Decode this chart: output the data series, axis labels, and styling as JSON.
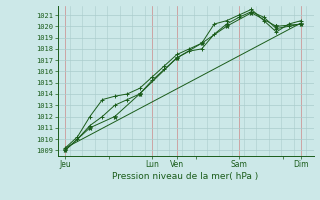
{
  "background_color": "#cce8e8",
  "grid_color_major": "#aacccc",
  "grid_color_minor": "#cce0e0",
  "line_color": "#1a5c1a",
  "marker_color": "#1a5c1a",
  "xlabel": "Pression niveau de la mer( hPa )",
  "ylim": [
    1008.5,
    1021.8
  ],
  "yticks": [
    1009,
    1010,
    1011,
    1012,
    1013,
    1014,
    1015,
    1016,
    1017,
    1018,
    1019,
    1020,
    1021
  ],
  "xtick_labels": [
    "Jeu",
    "Lun",
    "Ven",
    "Sam",
    "Dim"
  ],
  "xtick_positions": [
    0.0,
    3.5,
    4.5,
    7.0,
    9.5
  ],
  "xlim": [
    -0.3,
    10.0
  ],
  "series": [
    {
      "x": [
        0,
        0.5,
        1.0,
        1.5,
        2.0,
        2.5,
        3.0,
        3.5,
        4.0,
        4.5,
        5.0,
        5.5,
        6.0,
        6.5,
        7.0,
        7.5,
        8.0,
        8.5,
        9.0,
        9.5
      ],
      "y": [
        1009.0,
        1010.0,
        1011.2,
        1012.0,
        1013.0,
        1013.5,
        1014.0,
        1015.2,
        1016.2,
        1017.2,
        1017.8,
        1018.0,
        1019.3,
        1020.2,
        1020.8,
        1021.3,
        1020.8,
        1019.8,
        1020.0,
        1020.2
      ],
      "marker": "+"
    },
    {
      "x": [
        0,
        0.5,
        1.0,
        1.5,
        2.0,
        2.5,
        3.0,
        3.5,
        4.0,
        4.5,
        5.0,
        5.5,
        6.0,
        6.5,
        7.0,
        7.5,
        8.0,
        8.5,
        9.0,
        9.5
      ],
      "y": [
        1009.2,
        1010.2,
        1012.0,
        1013.5,
        1013.8,
        1014.0,
        1014.5,
        1015.5,
        1016.5,
        1017.5,
        1018.0,
        1018.5,
        1020.2,
        1020.5,
        1021.0,
        1021.5,
        1020.5,
        1019.5,
        1020.2,
        1020.5
      ],
      "marker": "+"
    },
    {
      "x": [
        0,
        1.0,
        2.0,
        3.0,
        4.5,
        5.5,
        6.5,
        7.5,
        8.5,
        9.5
      ],
      "y": [
        1009.0,
        1011.0,
        1012.0,
        1014.0,
        1017.2,
        1018.5,
        1020.0,
        1021.2,
        1020.0,
        1020.2
      ],
      "marker": "*"
    },
    {
      "x": [
        0,
        9.5
      ],
      "y": [
        1009.2,
        1020.3
      ],
      "marker": null
    }
  ]
}
